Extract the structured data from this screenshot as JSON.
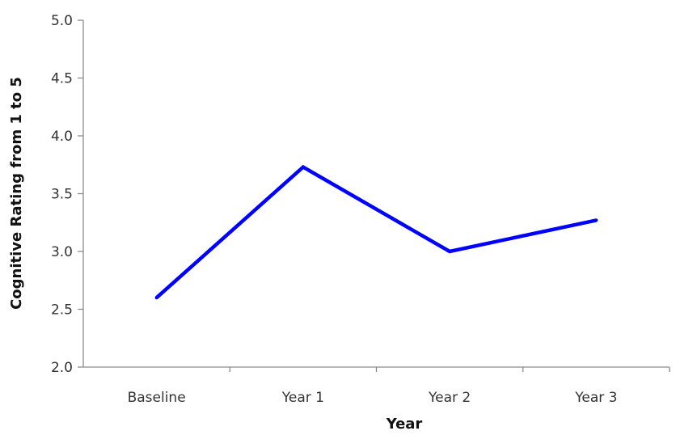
{
  "chart_data": {
    "type": "line",
    "title": "",
    "xlabel": "Year",
    "ylabel": "Cognitive Rating from 1 to 5",
    "categories": [
      "Baseline",
      "Year 1",
      "Year 2",
      "Year 3"
    ],
    "series": [
      {
        "values": [
          2.6,
          3.73,
          3.0,
          3.27
        ],
        "color": "#0000ff"
      }
    ],
    "ylim": [
      2.0,
      5.0
    ],
    "yticks": [
      "2.0",
      "2.5",
      "3.0",
      "3.5",
      "4.0",
      "4.5",
      "5.0"
    ],
    "grid": false,
    "legend": "none"
  }
}
